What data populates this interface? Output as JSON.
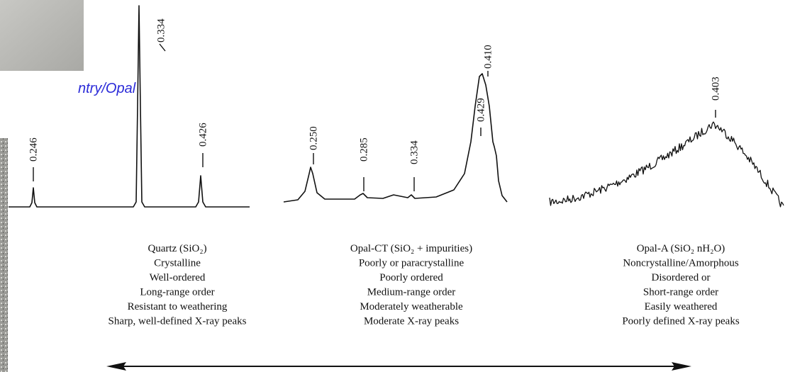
{
  "caption": "ntry/Opal",
  "panels": [
    {
      "peaks": [
        {
          "label": "0.246"
        },
        {
          "label": "0.334"
        },
        {
          "label": "0.426"
        }
      ],
      "lines": [
        "Quartz (SiO₂)",
        "Crystalline",
        "Well-ordered",
        "Long-range order",
        "Resistant to weathering",
        "Sharp, well-defined X-ray peaks"
      ]
    },
    {
      "peaks": [
        {
          "label": "0.250"
        },
        {
          "label": "0.285"
        },
        {
          "label": "0.334"
        },
        {
          "label": "0.410"
        },
        {
          "label": "0.429"
        }
      ],
      "lines": [
        "Opal-CT (SiO₂ + impurities)",
        "Poorly or paracrystalline",
        "Poorly ordered",
        "Medium-range order",
        "Moderately weatherable",
        "Moderate X-ray peaks"
      ]
    },
    {
      "peaks": [
        {
          "label": "0.403"
        }
      ],
      "lines": [
        "Opal-A (SiO₂ nH₂O)",
        "Noncrystalline/Amorphous",
        "Disordered or",
        "Short-range order",
        "Easily weathered",
        "Poorly defined X-ray peaks"
      ]
    }
  ]
}
